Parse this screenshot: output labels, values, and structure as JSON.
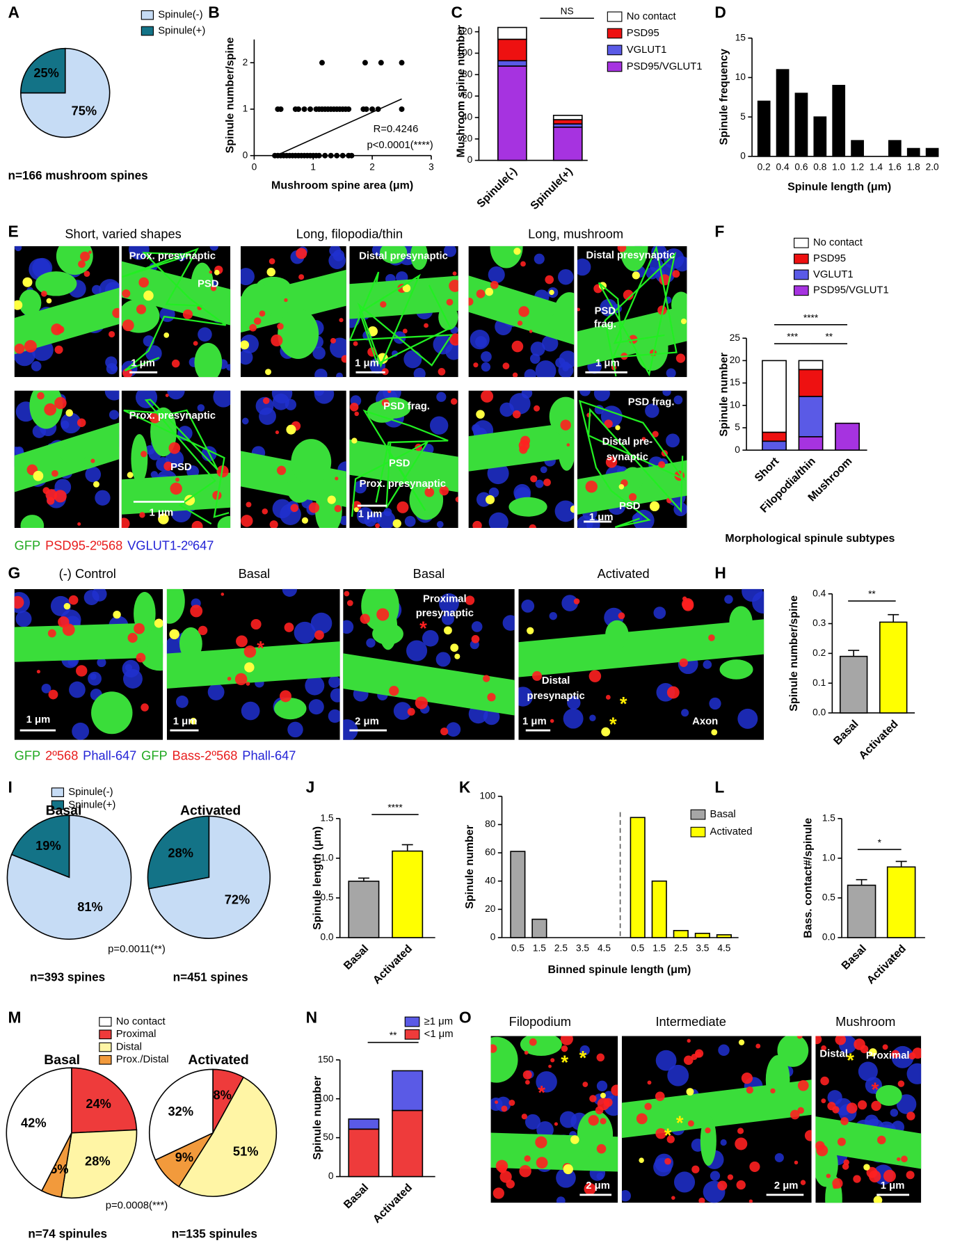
{
  "chart_data": [
    {
      "panel": "A",
      "type": "pie",
      "categories": [
        "Spinule(-)",
        "Spinule(+)"
      ],
      "colors": [
        "#c6dcf5",
        "#137387"
      ],
      "pies": [
        {
          "values": [
            75,
            25
          ],
          "value_labels": [
            "75%",
            "25%"
          ],
          "note": "n=166 mushroom spines"
        }
      ]
    },
    {
      "panel": "B",
      "type": "scatter",
      "xlabel": "Mushroom spine area (μm)",
      "ylabel": "Spinule number/spine",
      "x": [
        0.35,
        0.4,
        0.45,
        0.5,
        0.55,
        0.6,
        0.65,
        0.7,
        0.75,
        0.8,
        0.85,
        0.9,
        0.95,
        1.0,
        1.05,
        1.1,
        1.2,
        1.3,
        1.4,
        1.5,
        1.6,
        1.65,
        0.4,
        0.45,
        0.7,
        0.75,
        0.85,
        0.95,
        1.05,
        1.1,
        1.15,
        1.2,
        1.25,
        1.3,
        1.35,
        1.4,
        1.45,
        1.5,
        1.55,
        1.6,
        1.85,
        1.9,
        2.0,
        2.1,
        2.5,
        1.15,
        1.88,
        2.15,
        2.5
      ],
      "y": [
        0,
        0,
        0,
        0,
        0,
        0,
        0,
        0,
        0,
        0,
        0,
        0,
        0,
        0,
        0,
        0,
        0,
        0,
        0,
        0,
        0,
        0,
        1,
        1,
        1,
        1,
        1,
        1,
        1,
        1,
        1,
        1,
        1,
        1,
        1,
        1,
        1,
        1,
        1,
        1,
        1,
        1,
        1,
        1,
        1,
        2,
        2,
        2,
        2
      ],
      "color": "#000000",
      "fit": {
        "x": [
          0.37,
          2.5
        ],
        "y": [
          0,
          1.22
        ]
      },
      "xlim": [
        0,
        3
      ],
      "xticks": [
        0,
        1,
        2,
        3
      ],
      "ylim": [
        0,
        2.5
      ],
      "yticks": [
        0,
        1,
        2
      ],
      "annotations": [
        "R=0.4246",
        "p<0.0001(****)"
      ]
    },
    {
      "panel": "C",
      "type": "stacked_bar",
      "ylabel": "Mushroom spine number",
      "categories": [
        "Spinule(-)",
        "Spinule(+)"
      ],
      "series": [
        {
          "name": "PSD95/VGLUT1",
          "color": "#a633e0",
          "values": [
            88,
            31
          ]
        },
        {
          "name": "VGLUT1",
          "color": "#5a5ae6",
          "values": [
            5,
            3
          ]
        },
        {
          "name": "PSD95",
          "color": "#ee1111",
          "values": [
            20,
            4
          ]
        },
        {
          "name": "No contact",
          "color": "#ffffff",
          "values": [
            11,
            4
          ]
        }
      ],
      "ylim": [
        0,
        125
      ],
      "yticks": [
        0,
        20,
        40,
        60,
        80,
        100,
        120
      ],
      "significance": [
        "NS"
      ]
    },
    {
      "panel": "D",
      "type": "bar",
      "xlabel": "Spinule length (μm)",
      "ylabel": "Spinule frequency",
      "categories": [
        "0.2",
        "0.4",
        "0.6",
        "0.8",
        "1.0",
        "1.2",
        "1.4",
        "1.6",
        "1.8",
        "2.0"
      ],
      "values": [
        7,
        11,
        8,
        5,
        9,
        2,
        0,
        2,
        1,
        1
      ],
      "color": "#000000",
      "ylim": [
        0,
        15
      ],
      "yticks": [
        0,
        5,
        10,
        15
      ]
    },
    {
      "panel": "F",
      "type": "stacked_bar",
      "ylabel": "Spinule number",
      "xlabel": "Morphological spinule subtypes",
      "categories": [
        "Short",
        "Filopodia/thin",
        "Mushroom"
      ],
      "series": [
        {
          "name": "PSD95/VGLUT1",
          "color": "#a633e0",
          "values": [
            0,
            3,
            6
          ]
        },
        {
          "name": "VGLUT1",
          "color": "#5a5ae6",
          "values": [
            2,
            9,
            0
          ]
        },
        {
          "name": "PSD95",
          "color": "#ee1111",
          "values": [
            2,
            6,
            0
          ]
        },
        {
          "name": "No contact",
          "color": "#ffffff",
          "values": [
            16,
            2,
            0
          ]
        }
      ],
      "ylim": [
        0,
        25
      ],
      "yticks": [
        0,
        5,
        10,
        15,
        20,
        25
      ],
      "significance": [
        "****",
        "***",
        "**"
      ]
    },
    {
      "panel": "H",
      "type": "bar",
      "ylabel": "Spinule number/spine",
      "categories": [
        "Basal",
        "Activated"
      ],
      "values": [
        0.19,
        0.305
      ],
      "errors": [
        0.02,
        0.025
      ],
      "colors": [
        "#a6a6a6",
        "#ffff00"
      ],
      "ylim": [
        0,
        0.4
      ],
      "yticks": [
        {
          "value": 0,
          "label": "0.0"
        },
        0.1,
        0.2,
        0.3,
        0.4
      ],
      "significance": [
        "**"
      ]
    },
    {
      "panel": "I",
      "type": "pie",
      "categories": [
        "Spinule(-)",
        "Spinule(+)"
      ],
      "colors": [
        "#c6dcf5",
        "#137387"
      ],
      "pies": [
        {
          "title": "Basal",
          "values": [
            81,
            19
          ],
          "value_labels": [
            "81%",
            "19%"
          ],
          "note": "n=393 spines"
        },
        {
          "title": "Activated",
          "values": [
            72,
            28
          ],
          "value_labels": [
            "72%",
            "28%"
          ],
          "note": "n=451 spines"
        }
      ],
      "annotations": [
        "p=0.0011(**)"
      ]
    },
    {
      "panel": "J",
      "type": "bar",
      "ylabel": "Spinule length (μm)",
      "categories": [
        "Basal",
        "Activated"
      ],
      "values": [
        0.71,
        1.09
      ],
      "errors": [
        0.04,
        0.08
      ],
      "colors": [
        "#a6a6a6",
        "#ffff00"
      ],
      "ylim": [
        0,
        1.5
      ],
      "yticks": [
        {
          "value": 0,
          "label": "0.0"
        },
        0.5,
        {
          "value": 1,
          "label": "1.0"
        },
        1.5
      ],
      "significance": [
        "****"
      ]
    },
    {
      "panel": "K",
      "type": "bar",
      "xlabel": "Binned spinule length (μm)",
      "ylabel": "Spinule number",
      "categories": [
        "0.5",
        "1.5",
        "2.5",
        "3.5",
        "4.5"
      ],
      "series": [
        {
          "name": "Basal",
          "color": "#a6a6a6",
          "values": [
            61,
            13,
            0,
            0,
            0
          ]
        },
        {
          "name": "Activated",
          "color": "#ffff00",
          "values": [
            85,
            40,
            5,
            3,
            2
          ]
        }
      ],
      "ylim": [
        0,
        100
      ],
      "yticks": [
        0,
        20,
        40,
        60,
        80,
        100
      ]
    },
    {
      "panel": "L",
      "type": "bar",
      "ylabel": "Bass. contact#/spinule",
      "categories": [
        "Basal",
        "Activated"
      ],
      "values": [
        0.66,
        0.89
      ],
      "errors": [
        0.07,
        0.07
      ],
      "colors": [
        "#a6a6a6",
        "#ffff00"
      ],
      "ylim": [
        0,
        1.5
      ],
      "yticks": [
        {
          "value": 0,
          "label": "0.0"
        },
        0.5,
        {
          "value": 1,
          "label": "1.0"
        },
        1.5
      ],
      "significance": [
        "*"
      ]
    },
    {
      "panel": "M",
      "type": "pie",
      "categories": [
        "No contact",
        "Proximal",
        "Distal",
        "Prox./Distal"
      ],
      "colors": [
        "#ffffff",
        "#ee3b3b",
        "#fff5a5",
        "#f29a3c"
      ],
      "pies": [
        {
          "title": "Basal",
          "values": [
            42,
            24,
            28,
            5
          ],
          "value_labels": [
            "42%",
            "24%",
            "28%",
            "5%"
          ],
          "note": "n=74 spinules"
        },
        {
          "title": "Activated",
          "values": [
            32,
            8,
            51,
            9
          ],
          "value_labels": [
            "32%",
            "8%",
            "51%",
            "9%"
          ],
          "note": "n=135 spinules"
        }
      ],
      "annotations": [
        "p=0.0008(***)"
      ]
    },
    {
      "panel": "N",
      "type": "stacked_bar",
      "ylabel": "Spinule number",
      "categories": [
        "Basal",
        "Activated"
      ],
      "series": [
        {
          "name": "<1 μm",
          "color": "#ee3b3b",
          "values": [
            61,
            85
          ]
        },
        {
          "name": "≥1 μm",
          "color": "#5a5ae6",
          "values": [
            13,
            51
          ]
        }
      ],
      "ylim": [
        0,
        150
      ],
      "yticks": [
        0,
        50,
        100,
        150
      ],
      "significance": [
        "**"
      ]
    }
  ],
  "figure_panels": [
    {
      "panel": "E",
      "titles": [
        "Short, varied shapes",
        "Long, filopodia/thin",
        "Long, mushroom"
      ],
      "images": [
        [],
        [
          "Prox. presynaptic",
          "PSD",
          "1 μm"
        ],
        [],
        [
          "Distal presynaptic",
          "1 μm"
        ],
        [],
        [
          "Distal presynaptic",
          "PSD",
          "frag.",
          "1 μm"
        ],
        [],
        [
          "Prox. presynaptic",
          "PSD",
          "1 μm"
        ],
        [],
        [
          "PSD frag.",
          "PSD",
          "Prox. presynaptic",
          "1 μm"
        ],
        [],
        [
          "PSD frag.",
          "Distal pre-",
          "synaptic",
          "PSD",
          "1 μm"
        ]
      ],
      "legend": [
        {
          "text": "GFP",
          "color": "#1fa81f"
        },
        {
          "text": "PSD95-2º568",
          "color": "#e81c1c"
        },
        {
          "text": "VGLUT1-2º647",
          "color": "#2323d6"
        }
      ]
    },
    {
      "panel": "G",
      "titles": [
        "(-) Control",
        "Basal",
        "Basal",
        "Activated"
      ],
      "images": [
        [
          "1 μm"
        ],
        [
          "*",
          "1 μm"
        ],
        [
          "Proximal",
          "presynaptic",
          "*",
          "2 μm"
        ],
        [
          "Distal",
          "presynaptic",
          "*",
          "*",
          "Axon",
          "1 μm"
        ]
      ],
      "legend": [
        {
          "text": "GFP",
          "color": "#1fa81f"
        },
        {
          "text": "2º568",
          "color": "#e81c1c"
        },
        {
          "text": "Phall-647",
          "color": "#2323d6"
        },
        {
          "text": "GFP",
          "color": "#1fa81f"
        },
        {
          "text": "Bass-2º568",
          "color": "#e81c1c"
        },
        {
          "text": "Phall-647",
          "color": "#2323d6"
        }
      ]
    },
    {
      "panel": "O",
      "titles": [
        "Filopodium",
        "Intermediate",
        "Mushroom"
      ],
      "images": [
        [
          "*",
          "*",
          "*",
          "2 μm"
        ],
        [
          "*",
          "*",
          "2 μm"
        ],
        [
          "Distal",
          "*",
          "Proximal",
          "*",
          "1 μm"
        ]
      ]
    }
  ]
}
